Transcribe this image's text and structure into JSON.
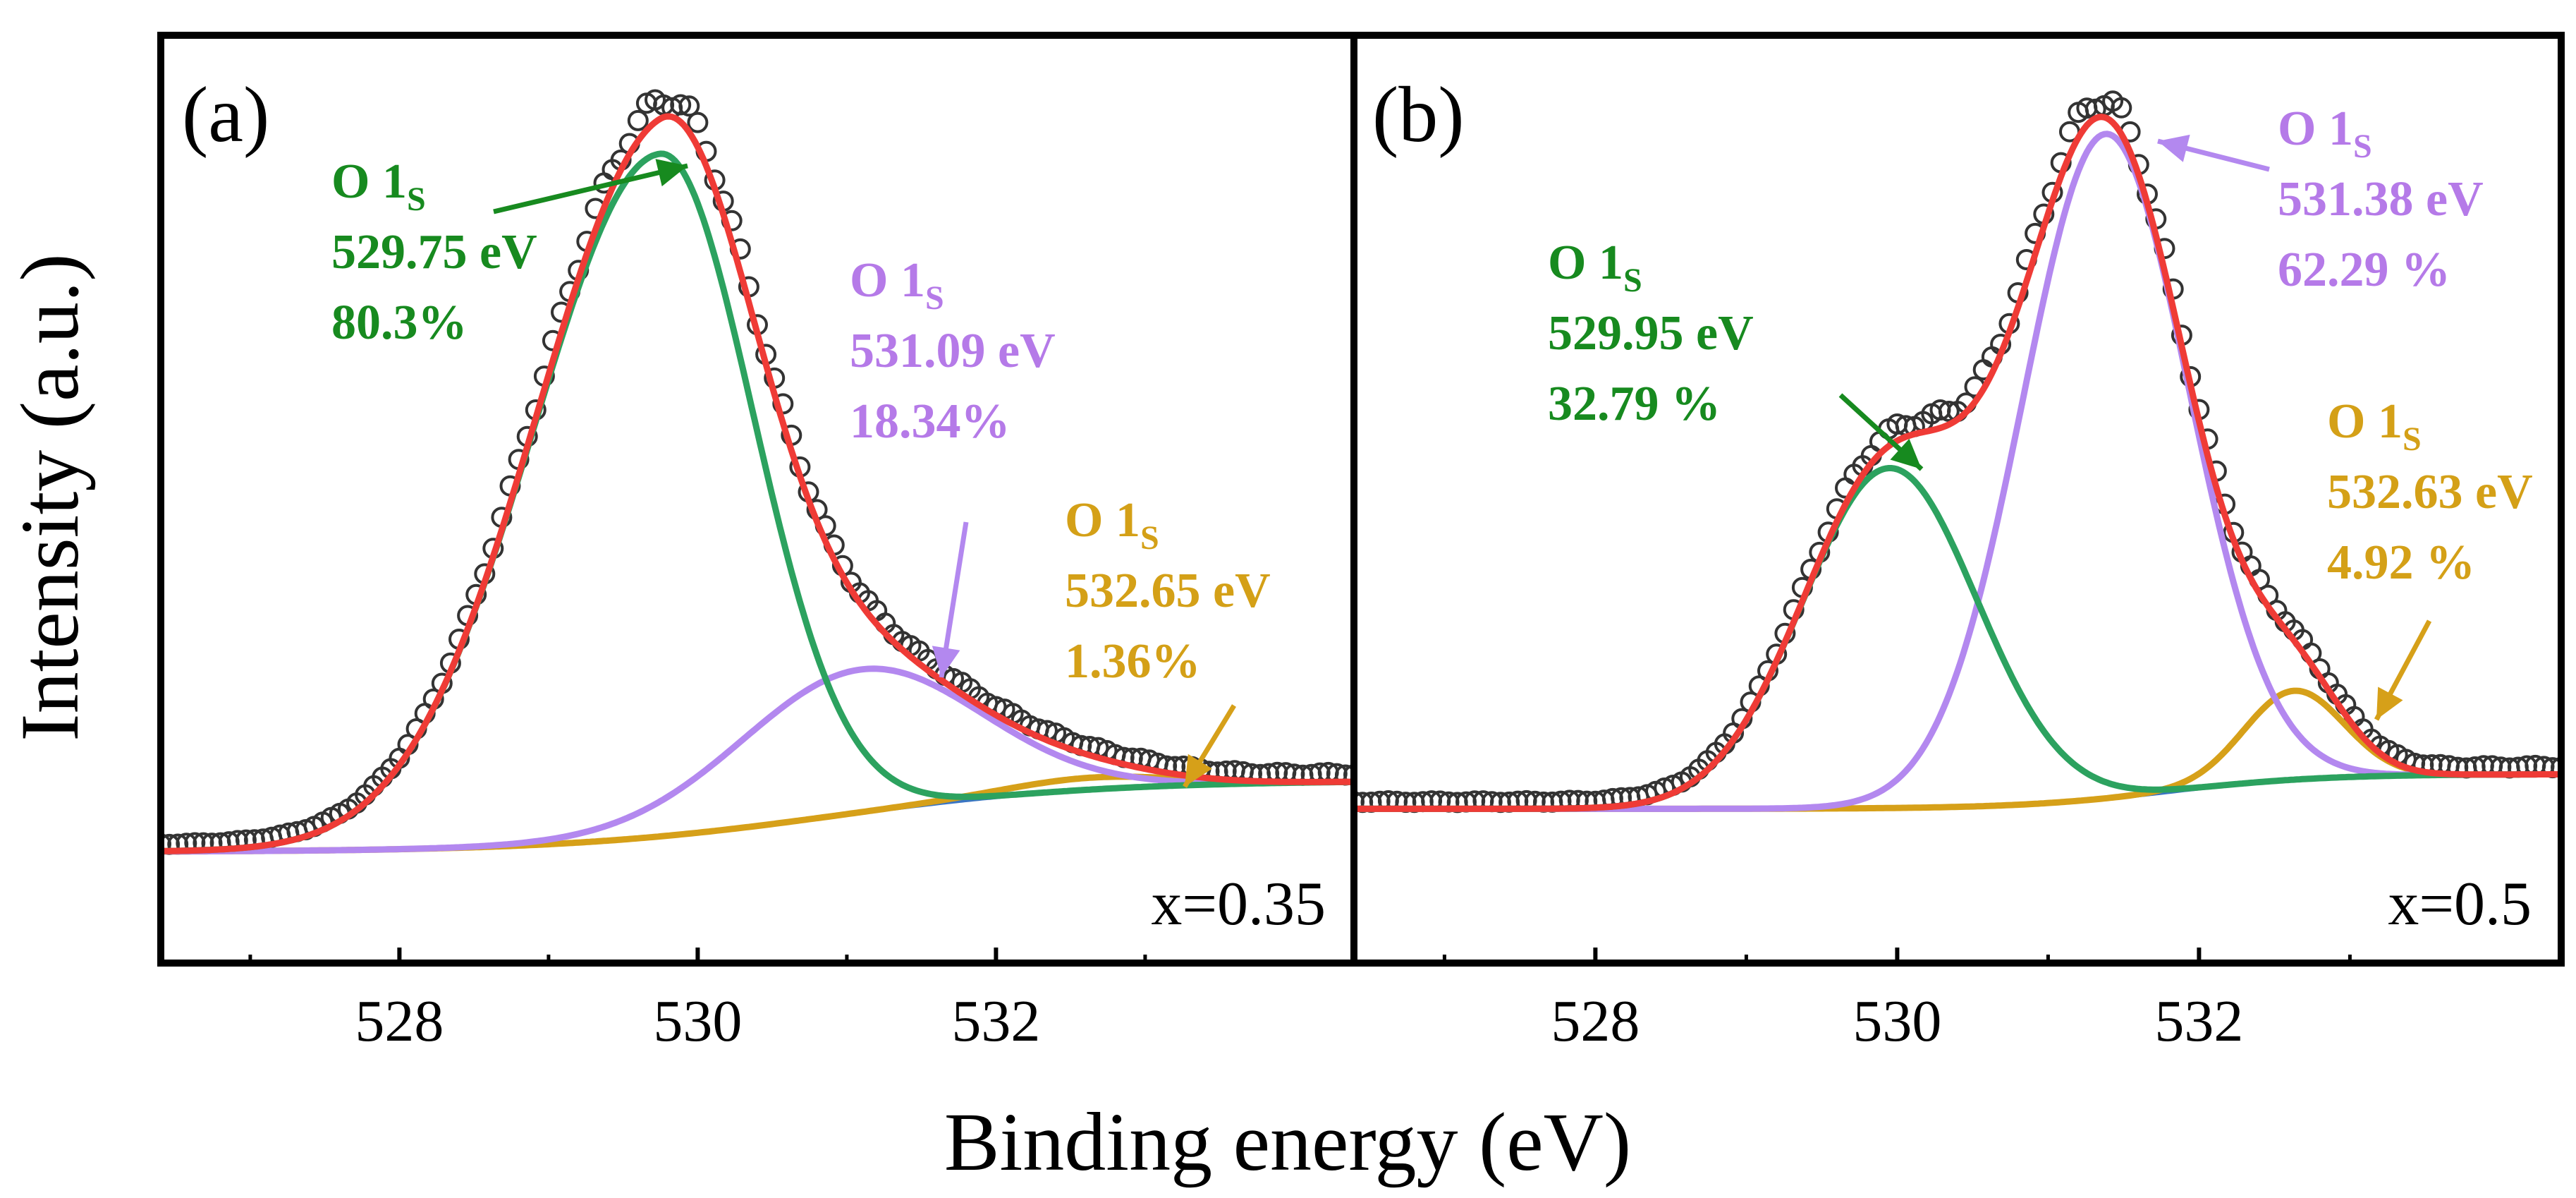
{
  "chart_data": {
    "type": "line",
    "xlabel": "Binding energy (eV)",
    "ylabel": "Intensity (a.u.)",
    "xlim": [
      526.4,
      534.4
    ],
    "x_axis_direction": "ascending",
    "ticks": [
      528,
      530,
      532
    ],
    "tick_labels": [
      "528",
      "530",
      "532"
    ],
    "minor_ticks": [
      527,
      529,
      531,
      533
    ],
    "colors": {
      "data": "#333333",
      "envelope": "#ef3b36",
      "lattice": "#2ca25f",
      "vacancy": "#b388ef",
      "adsorbed": "#d6a019",
      "background": "#3a75c4",
      "lattice_text": "#178a1f",
      "vacancy_text": "#b57ae8",
      "adsorbed_text": "#d4a017"
    },
    "panels": [
      {
        "id": "a",
        "panel_label": "(a)",
        "sample_label": "x=0.35",
        "ylim": [
          0,
          1.0
        ],
        "background": {
          "base": 0.06,
          "step": 0.09,
          "center": 530.9,
          "width": 0.9
        },
        "peaks": [
          {
            "name": "lattice",
            "center": 529.75,
            "amp": 0.86,
            "sigma": 0.62,
            "left_tail": 0.55
          },
          {
            "name": "vacancy",
            "center": 531.09,
            "amp": 0.18,
            "sigma": 0.8
          },
          {
            "name": "adsorbed",
            "center": 532.65,
            "amp": 0.015,
            "sigma": 0.55
          }
        ],
        "annotations": [
          {
            "series": "lattice",
            "title": "O 1",
            "sub": "S",
            "energy": "529.75 eV",
            "percent": "80.3%"
          },
          {
            "series": "vacancy",
            "title": "O 1",
            "sub": "S",
            "energy": "531.09 eV",
            "percent": "18.34%"
          },
          {
            "series": "adsorbed",
            "title": "O  1",
            "sub": "S",
            "energy": "532.65 eV",
            "percent": "1.36%"
          }
        ]
      },
      {
        "id": "b",
        "panel_label": "(b)",
        "sample_label": "x=0.5",
        "ylim": [
          0,
          1.0
        ],
        "background": {
          "base": 0.09,
          "step": 0.045,
          "center": 531.8,
          "width": 0.5
        },
        "peaks": [
          {
            "name": "lattice",
            "center": 529.95,
            "amp": 0.44,
            "sigma": 0.58
          },
          {
            "name": "vacancy",
            "center": 531.38,
            "amp": 0.86,
            "sigma": 0.55
          },
          {
            "name": "adsorbed",
            "center": 532.63,
            "amp": 0.115,
            "sigma": 0.33
          }
        ],
        "annotations": [
          {
            "series": "lattice",
            "title": "O 1",
            "sub": "S",
            "energy": "529.95 eV",
            "percent": "32.79 %"
          },
          {
            "series": "vacancy",
            "title": "O 1",
            "sub": "S",
            "energy": "531.38 eV",
            "percent": "62.29 %"
          },
          {
            "series": "adsorbed",
            "title": "O  1",
            "sub": "S",
            "energy": "532.63 eV",
            "percent": "4.92 %"
          }
        ]
      }
    ]
  }
}
